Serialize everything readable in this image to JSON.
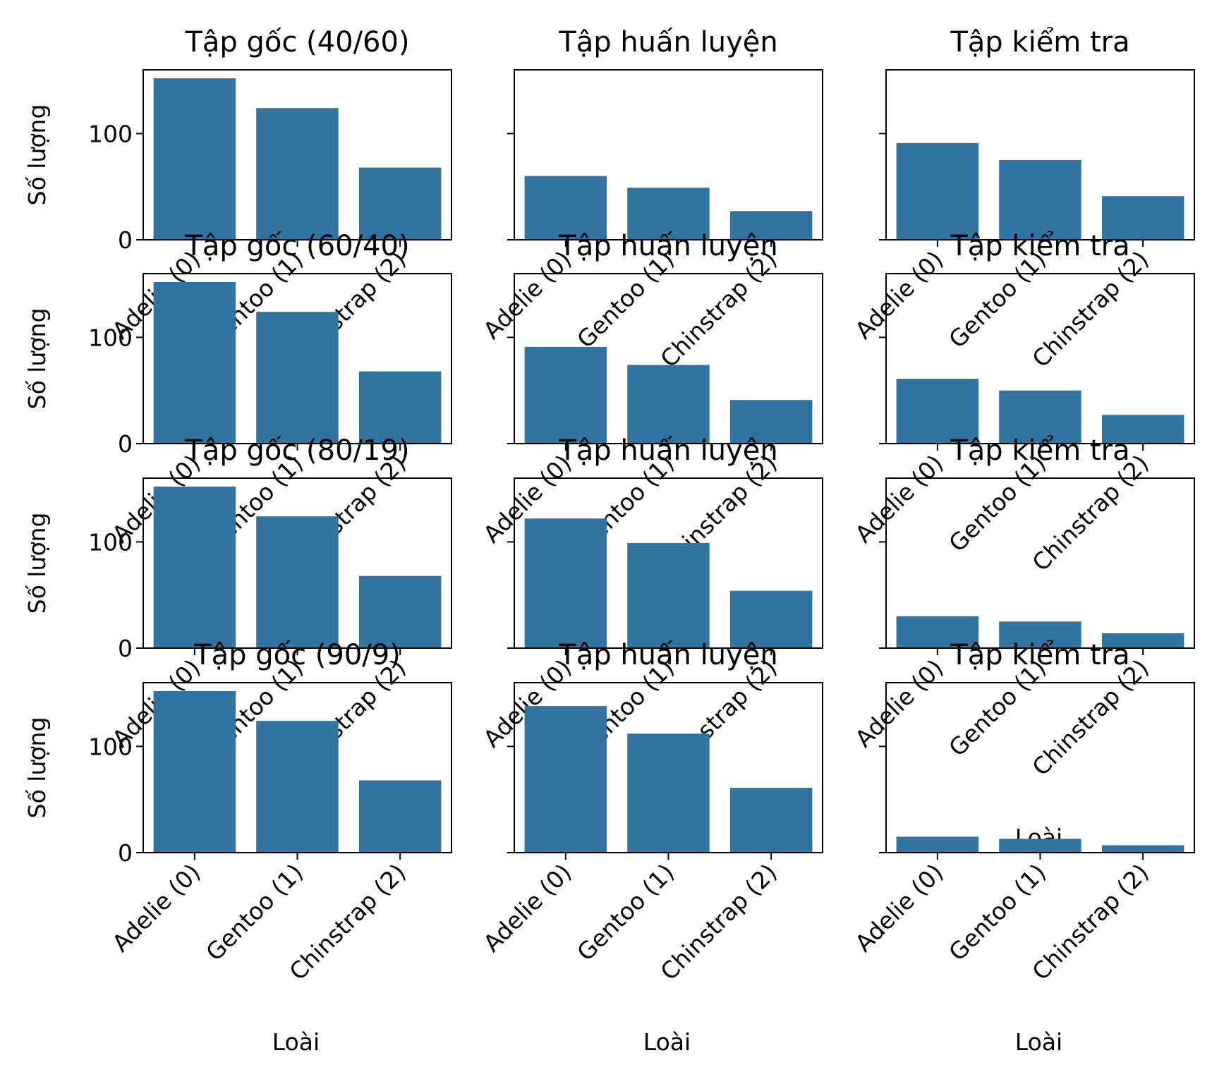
{
  "chart_data": {
    "type": "bar",
    "layout": "grid 4 rows x 3 columns",
    "bar_color": "#3274a1",
    "categories": [
      "Adelie (0)",
      "Gentoo (1)",
      "Chinstrap (2)"
    ],
    "xlabel": "Loài",
    "ylabel": "Số lượng",
    "yticks": [
      0,
      100
    ],
    "ylim": [
      0,
      160
    ],
    "grid": false,
    "tick_rotation": "45 degrees, right aligned",
    "panels": [
      {
        "title": "Tập gốc (40/60)",
        "values": [
          152,
          124,
          68
        ]
      },
      {
        "title": "Tập huấn luyện",
        "values": [
          60,
          49,
          27
        ]
      },
      {
        "title": "Tập kiểm tra",
        "values": [
          91,
          75,
          41
        ]
      },
      {
        "title": "Tập gốc (60/40)",
        "values": [
          152,
          124,
          68
        ]
      },
      {
        "title": "Tập huấn luyện",
        "values": [
          91,
          74,
          41
        ]
      },
      {
        "title": "Tập kiểm tra",
        "values": [
          61,
          50,
          27
        ]
      },
      {
        "title": "Tập gốc (80/19)",
        "values": [
          152,
          124,
          68
        ]
      },
      {
        "title": "Tập huấn luyện",
        "values": [
          122,
          99,
          54
        ]
      },
      {
        "title": "Tập kiểm tra",
        "values": [
          30,
          25,
          14
        ]
      },
      {
        "title": "Tập gốc (90/9)",
        "values": [
          152,
          124,
          68
        ]
      },
      {
        "title": "Tập huấn luyện",
        "values": [
          138,
          112,
          61
        ]
      },
      {
        "title": "Tập kiểm tra",
        "values": [
          15,
          13,
          7
        ]
      }
    ]
  }
}
